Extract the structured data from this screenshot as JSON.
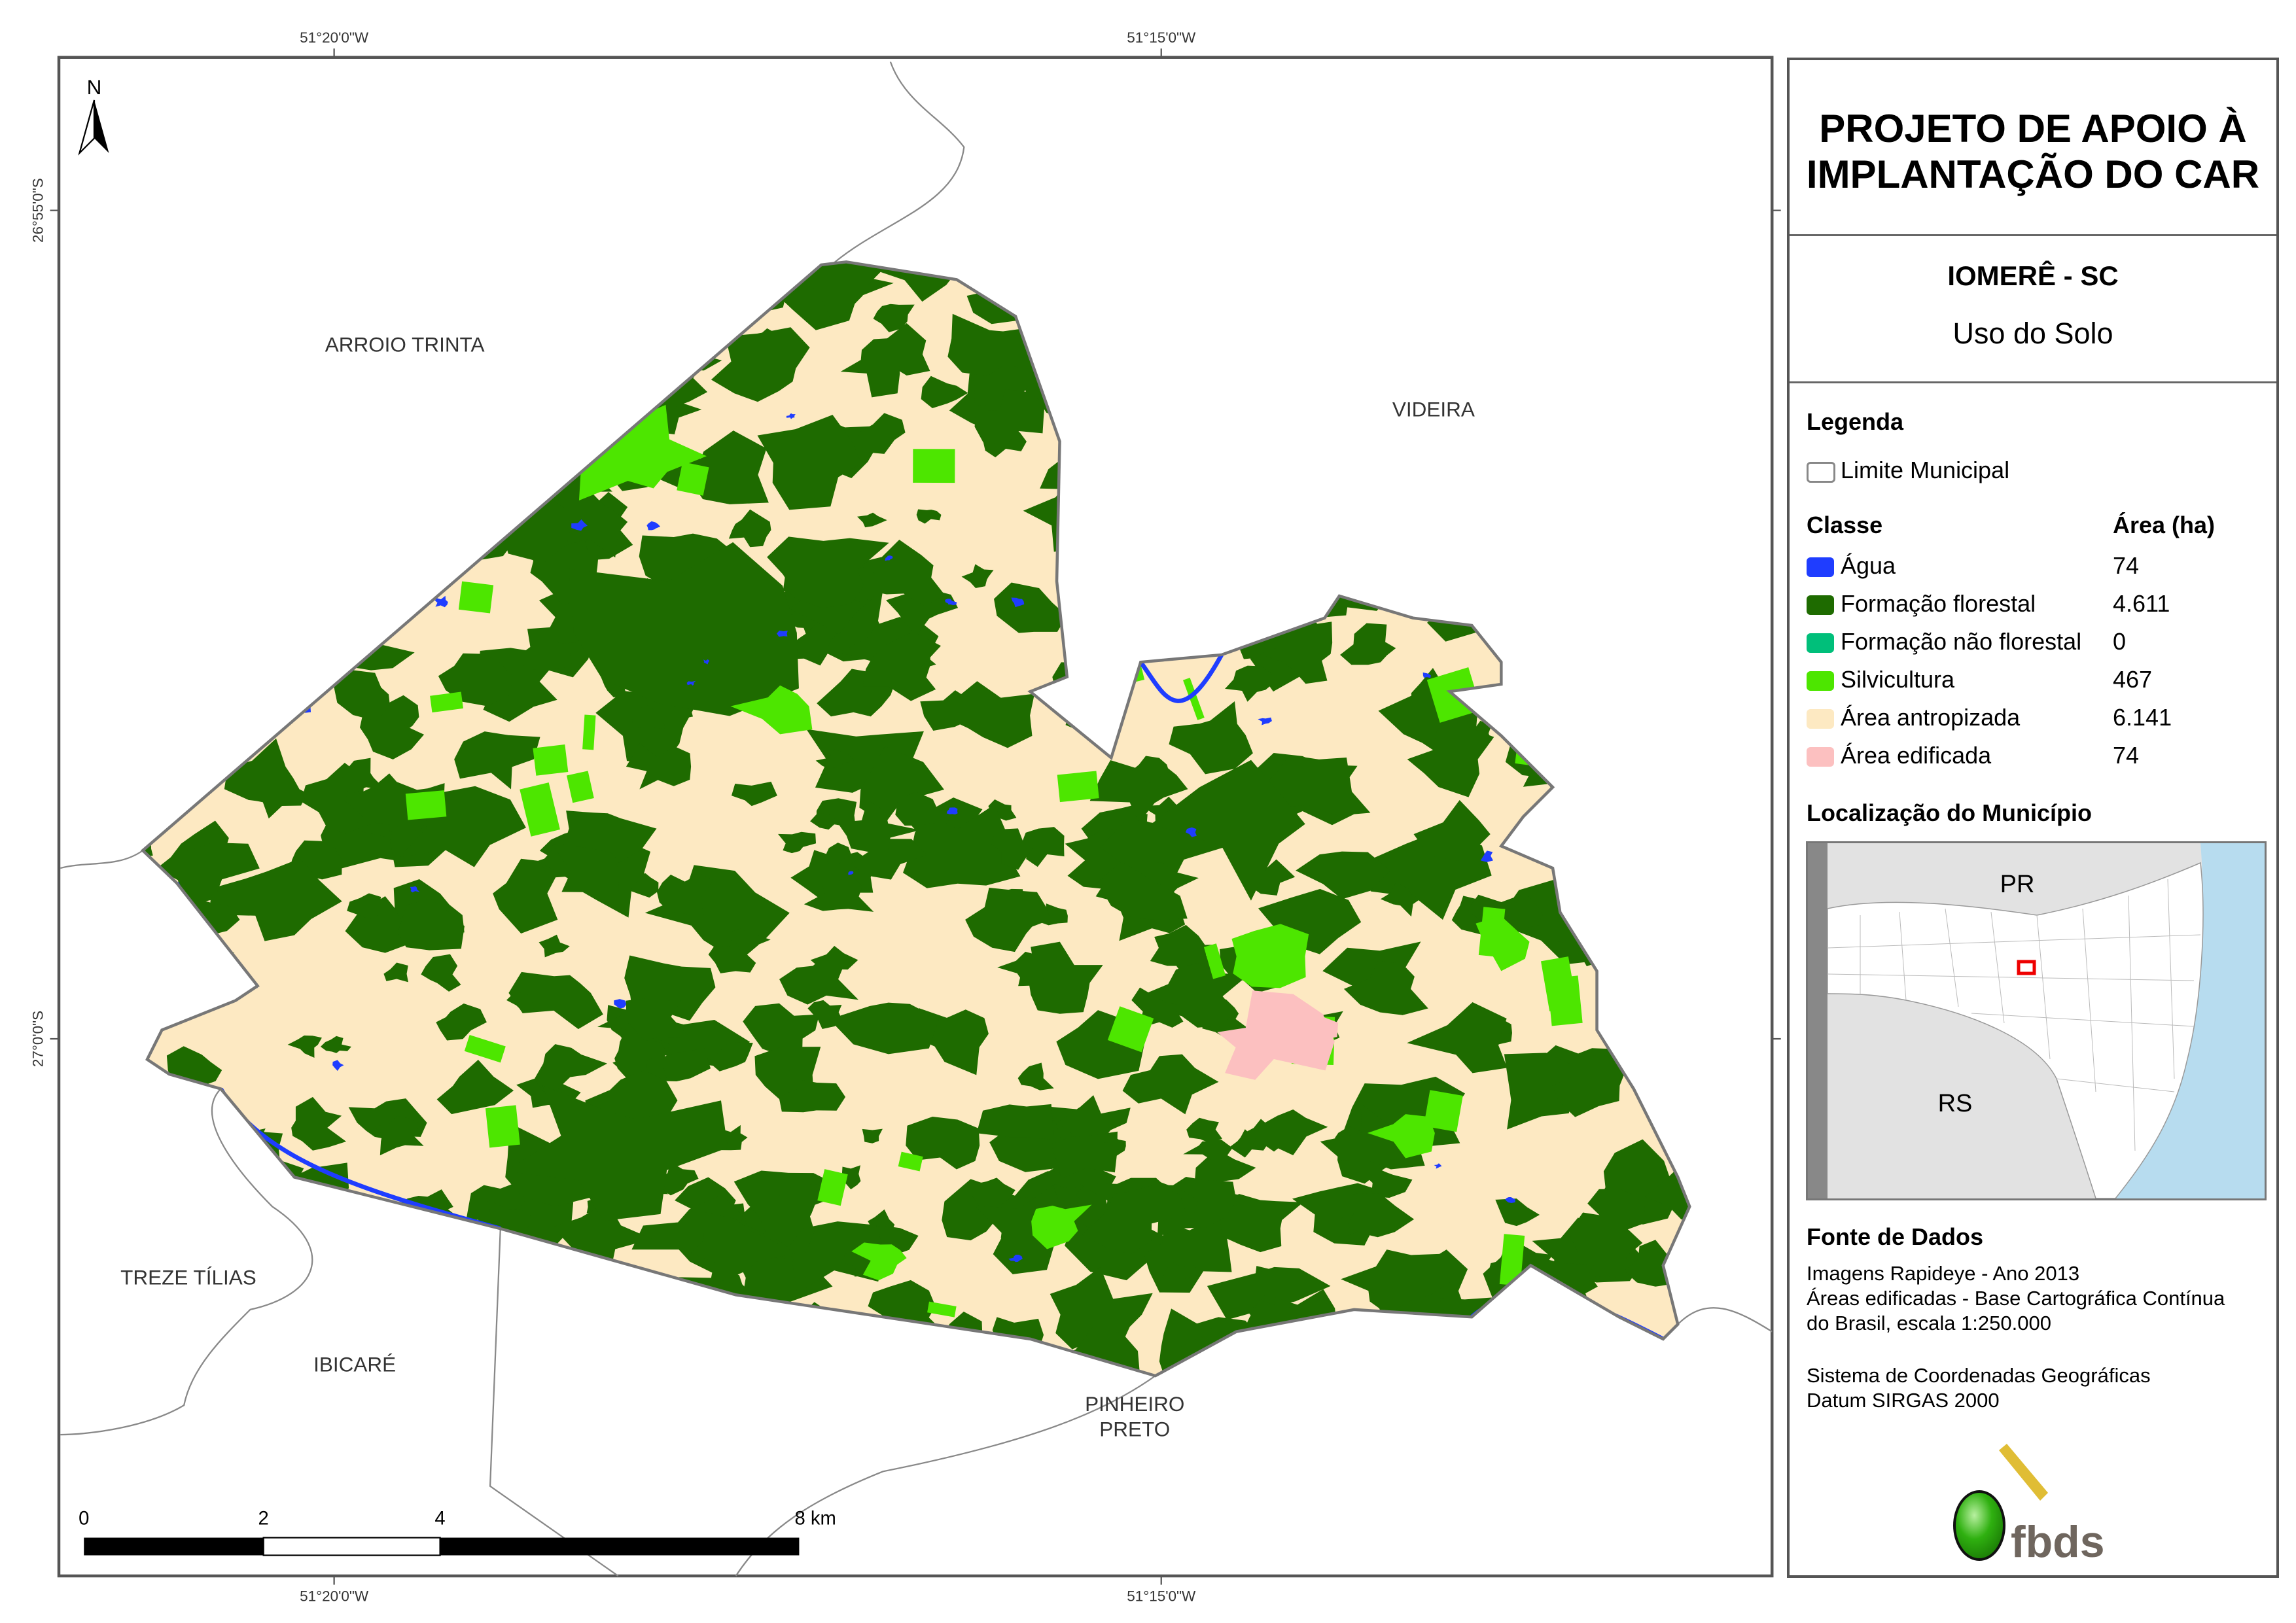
{
  "coordinates": {
    "top": [
      "51°20'0\"W",
      "51°15'0\"W"
    ],
    "bottom": [
      "51°20'0\"W",
      "51°15'0\"W"
    ],
    "left": [
      "26°55'0\"S",
      "27°0'0\"S"
    ]
  },
  "north_arrow": "N",
  "places": {
    "arroio_trinta": "ARROIO TRINTA",
    "videira": "VIDEIRA",
    "treze_tilias": "TREZE TÍLIAS",
    "ibicare": "IBICARÉ",
    "pinheiro_preto_1": "PINHEIRO",
    "pinheiro_preto_2": "PRETO"
  },
  "scale_bar": {
    "labels": [
      "0",
      "2",
      "4",
      "8 km"
    ]
  },
  "panel": {
    "title_line1": "PROJETO DE APOIO À",
    "title_line2": "IMPLANTAÇÃO DO CAR",
    "municipality": "IOMERÊ - SC",
    "theme": "Uso do Solo",
    "legend_title": "Legenda",
    "boundary_label": "Limite Municipal",
    "class_header": "Classe",
    "area_header": "Área (ha)",
    "classes": [
      {
        "label": "Água",
        "area": "74",
        "color": "#1f3dff"
      },
      {
        "label": "Formação florestal",
        "area": "4.611",
        "color": "#1e6b00"
      },
      {
        "label": "Formação não florestal",
        "area": "0",
        "color": "#00bf7a"
      },
      {
        "label": "Silvicultura",
        "area": "467",
        "color": "#4de600"
      },
      {
        "label": "Área antropizada",
        "area": "6.141",
        "color": "#fde9c2"
      },
      {
        "label": "Área edificada",
        "area": "74",
        "color": "#fcc0c0"
      }
    ],
    "location_title": "Localização do Município",
    "inset_labels": {
      "pr": "PR",
      "rs": "RS"
    },
    "sources_title": "Fonte de Dados",
    "sources": [
      "Imagens Rapideye - Ano 2013",
      "Áreas edificadas - Base Cartográfica Contínua",
      "do Brasil, escala 1:250.000"
    ],
    "crs": [
      "Sistema de Coordenadas Geográficas",
      "Datum SIRGAS 2000"
    ],
    "logo_text": "fbds"
  }
}
